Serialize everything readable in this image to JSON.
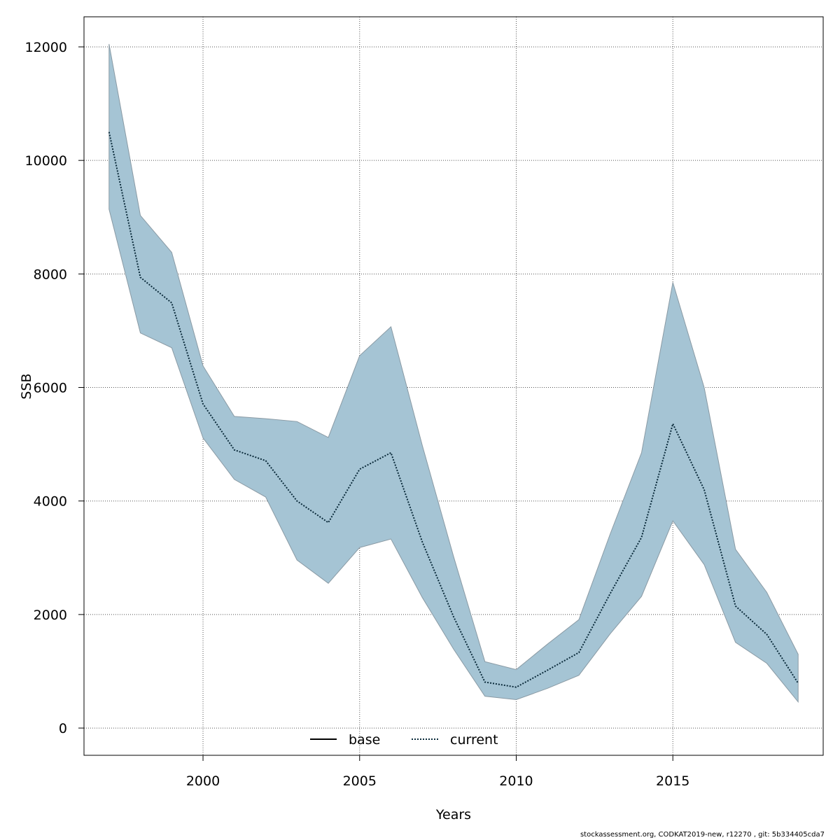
{
  "chart_data": {
    "type": "area",
    "title": "",
    "xlabel": "Years",
    "ylabel": "SSB",
    "xlim": [
      1996.2,
      2019.8
    ],
    "ylim": [
      -480,
      12530
    ],
    "x_ticks": [
      2000,
      2005,
      2010,
      2015
    ],
    "y_ticks": [
      0,
      2000,
      4000,
      6000,
      8000,
      10000,
      12000
    ],
    "grid": true,
    "legend_position": "bottom",
    "x": [
      1997,
      1998,
      1999,
      2000,
      2001,
      2002,
      2003,
      2004,
      2005,
      2006,
      2007,
      2008,
      2009,
      2010,
      2011,
      2012,
      2013,
      2014,
      2015,
      2016,
      2017,
      2018,
      2019
    ],
    "series": [
      {
        "name": "current",
        "style": "dotted",
        "values": [
          10500,
          7940,
          7490,
          5710,
          4900,
          4710,
          4000,
          3620,
          4560,
          4850,
          3280,
          1960,
          810,
          720,
          1020,
          1330,
          2370,
          3360,
          5360,
          4200,
          2150,
          1650,
          790
        ]
      }
    ],
    "band": {
      "upper": [
        12050,
        9030,
        8380,
        6380,
        5490,
        5450,
        5400,
        5120,
        6560,
        7070,
        4980,
        3020,
        1170,
        1030,
        1480,
        1910,
        3420,
        4850,
        7850,
        6000,
        3150,
        2390,
        1300
      ],
      "lower": [
        9140,
        6960,
        6700,
        5110,
        4380,
        4070,
        2960,
        2550,
        3180,
        3330,
        2300,
        1390,
        560,
        500,
        700,
        930,
        1660,
        2320,
        3650,
        2880,
        1510,
        1140,
        460
      ]
    },
    "legend": [
      {
        "label": "base",
        "style": "solid"
      },
      {
        "label": "current",
        "style": "dotted"
      }
    ],
    "colors": {
      "band_fill": "#a5c4d4",
      "band_edge": "#8a9aa4",
      "current_line": "#0a2a3a",
      "base_line": "#000000",
      "grid": "#555555"
    }
  },
  "footer": "stockassessment.org, CODKAT2019-new, r12270 , git: 5b334405cda7"
}
